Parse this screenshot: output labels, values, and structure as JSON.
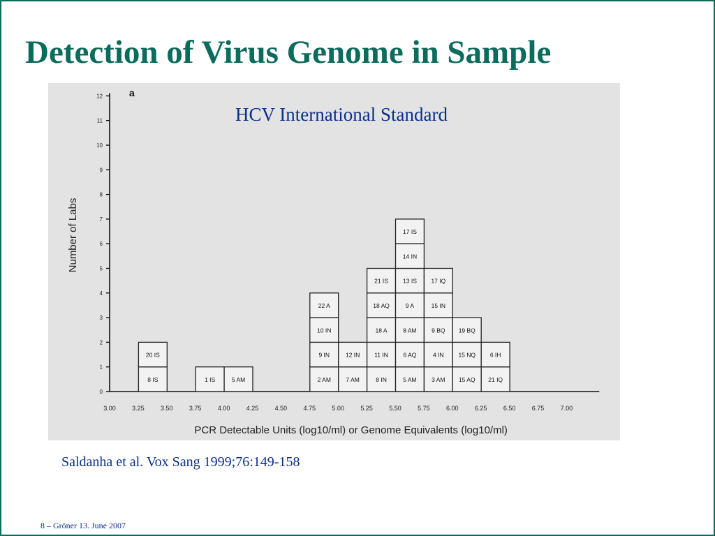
{
  "slide": {
    "title": "Detection of Virus Genome in Sample",
    "citation": "Saldanha et al. Vox Sang 1999;76:149-158",
    "footer": "8 – Gröner 13. June 2007"
  },
  "chart_data": {
    "type": "bar",
    "panel_label": "a",
    "title": "HCV International Standard",
    "xlabel": "PCR Detectable Units (log10/ml) or Genome Equivalents (log10/ml)",
    "ylabel": "Number of Labs",
    "categories": [
      "3.00",
      "3.25",
      "3.50",
      "3.75",
      "4.00",
      "4.25",
      "4.50",
      "4.75",
      "5.00",
      "5.25",
      "5.50",
      "5.75",
      "6.00",
      "6.25",
      "6.50",
      "6.75",
      "7.00"
    ],
    "yticks": [
      0,
      1,
      2,
      3,
      4,
      5,
      6,
      7,
      8,
      9,
      10,
      11,
      12
    ],
    "ylim": [
      0,
      12
    ],
    "values": [
      0,
      2,
      0,
      1,
      1,
      0,
      0,
      4,
      2,
      5,
      7,
      5,
      3,
      2,
      0,
      0,
      0
    ],
    "stacks": [
      [],
      [
        "8 IS",
        "20 IS"
      ],
      [],
      [
        "1 IS"
      ],
      [
        "5 AM"
      ],
      [],
      [],
      [
        "2 AM",
        "9 IN",
        "10 IN",
        "22 A"
      ],
      [
        "7 AM",
        "12 IN"
      ],
      [
        "8 IN",
        "11 IN",
        "18 A",
        "18 AQ",
        "21 IS"
      ],
      [
        "5 AM",
        "6 AQ",
        "8 AM",
        "9 A",
        "13 IS",
        "14 IN",
        "17 IS"
      ],
      [
        "3 AM",
        "4 IN",
        "9 BQ",
        "15 IN",
        "17 IQ"
      ],
      [
        "15 AQ",
        "15 NQ",
        "19 BQ"
      ],
      [
        "21 IQ",
        "6 IH"
      ],
      [],
      [],
      []
    ],
    "grid": false
  }
}
